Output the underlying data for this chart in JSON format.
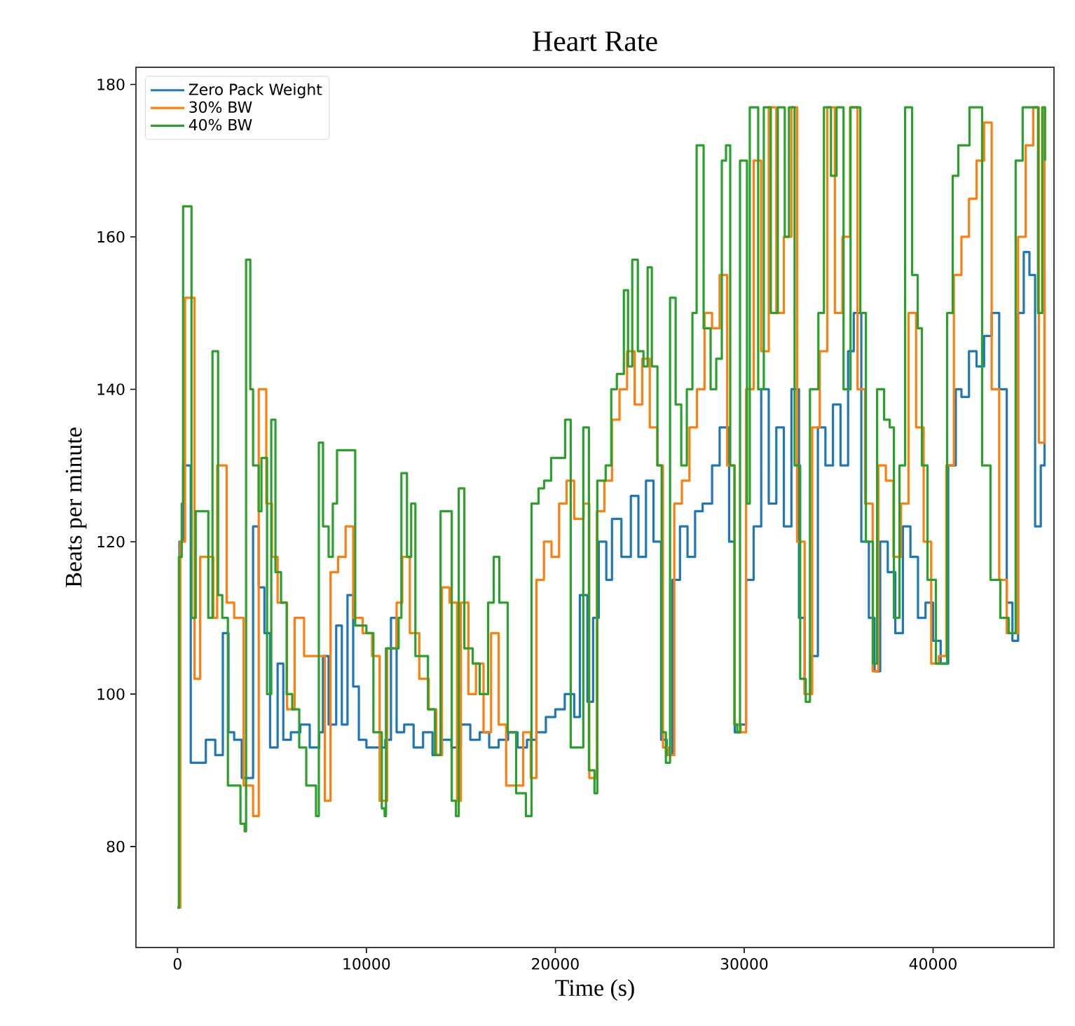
{
  "chart_data": {
    "type": "step",
    "title": "Heart Rate",
    "xlabel": "Time (s)",
    "ylabel": "Beats per minute",
    "xlim": [
      -2200,
      46400
    ],
    "ylim": [
      66.75,
      182.25
    ],
    "xticks": [
      0,
      10000,
      20000,
      30000,
      40000
    ],
    "yticks": [
      80,
      100,
      120,
      140,
      160,
      180
    ],
    "legend": "top left",
    "series": [
      {
        "name": "Zero Pack Weight",
        "color": "#1f77b4",
        "x": [
          0,
          100,
          300,
          700,
          1500,
          2000,
          2400,
          2700,
          3000,
          3400,
          3800,
          4000,
          4300,
          4600,
          4900,
          5300,
          5600,
          6000,
          6500,
          7000,
          7500,
          7700,
          8000,
          8400,
          8700,
          9000,
          9300,
          9600,
          10000,
          10500,
          11000,
          11300,
          11600,
          12000,
          12500,
          13000,
          13500,
          14000,
          14500,
          15000,
          15500,
          16000,
          16500,
          17000,
          17500,
          18000,
          18500,
          19000,
          19500,
          20000,
          20500,
          21000,
          21300,
          21700,
          22000,
          22300,
          22700,
          23000,
          23500,
          24000,
          24400,
          24800,
          25200,
          25600,
          25900,
          26200,
          26600,
          27000,
          27400,
          27800,
          28300,
          28700,
          29200,
          29500,
          29800,
          30100,
          30500,
          30900,
          31300,
          31700,
          32100,
          32500,
          32900,
          33200,
          33500,
          33900,
          34300,
          34700,
          35100,
          35500,
          35800,
          36200,
          36600,
          36900,
          37200,
          37600,
          38000,
          38400,
          38800,
          39200,
          39600,
          40000,
          40400,
          40800,
          41200,
          41500,
          41900,
          42300,
          42700,
          43100,
          43500,
          43900,
          44200,
          44500,
          44800,
          45100,
          45400,
          45700,
          45900
        ],
        "values": [
          72,
          120,
          130,
          91,
          94,
          92,
          108,
          95,
          94,
          89,
          89,
          122,
          114,
          108,
          93,
          104,
          94,
          95,
          96,
          93,
          95,
          105,
          96,
          109,
          96,
          113,
          101,
          94,
          93,
          93,
          94,
          110,
          95,
          96,
          93,
          95,
          92,
          94,
          93,
          96,
          94,
          95,
          93,
          94,
          95,
          93,
          94,
          95,
          97,
          98,
          100,
          97,
          113,
          99,
          110,
          120,
          115,
          123,
          118,
          126,
          118,
          128,
          120,
          94,
          92,
          115,
          122,
          118,
          124,
          125,
          130,
          135,
          120,
          95,
          96,
          115,
          122,
          140,
          125,
          135,
          122,
          140,
          110,
          100,
          105,
          135,
          130,
          138,
          130,
          145,
          150,
          120,
          110,
          103,
          120,
          116,
          108,
          122,
          118,
          110,
          112,
          107,
          104,
          130,
          140,
          139,
          145,
          143,
          147,
          150,
          140,
          112,
          107,
          150,
          158,
          155,
          122,
          130,
          155
        ]
      },
      {
        "name": "30% BW",
        "color": "#ff7f0e",
        "x": [
          0,
          150,
          400,
          900,
          1200,
          1900,
          2100,
          2600,
          3000,
          3500,
          4000,
          4300,
          4700,
          5000,
          5300,
          5800,
          6200,
          6700,
          7200,
          7800,
          8100,
          8500,
          8900,
          9300,
          9800,
          10300,
          10700,
          11100,
          11600,
          11900,
          12300,
          12800,
          13300,
          13700,
          14000,
          14400,
          14800,
          15000,
          15400,
          15800,
          16200,
          16600,
          17000,
          17400,
          17800,
          18300,
          18700,
          19000,
          19400,
          19800,
          20200,
          20600,
          21000,
          21500,
          21800,
          22200,
          22600,
          23000,
          23400,
          23800,
          24200,
          24600,
          25000,
          25400,
          25700,
          26000,
          26300,
          26700,
          27100,
          27500,
          27900,
          28300,
          28700,
          29100,
          29500,
          29800,
          30100,
          30500,
          30900,
          31300,
          31700,
          32100,
          32500,
          32800,
          33200,
          33600,
          34000,
          34400,
          34800,
          35200,
          35600,
          36000,
          36400,
          36800,
          37100,
          37500,
          37900,
          38300,
          38700,
          39100,
          39500,
          39900,
          40300,
          40700,
          41100,
          41500,
          41900,
          42300,
          42700,
          43100,
          43500,
          43900,
          44200,
          44500,
          44900,
          45300,
          45600,
          45900
        ],
        "values": [
          72,
          120,
          152,
          102,
          118,
          110,
          130,
          112,
          110,
          88,
          84,
          140,
          125,
          118,
          112,
          98,
          110,
          105,
          105,
          86,
          116,
          118,
          122,
          110,
          108,
          105,
          86,
          106,
          112,
          118,
          108,
          102,
          98,
          92,
          114,
          112,
          86,
          112,
          100,
          104,
          95,
          108,
          96,
          88,
          88,
          95,
          89,
          115,
          120,
          118,
          125,
          128,
          123,
          125,
          89,
          124,
          128,
          136,
          140,
          145,
          138,
          144,
          135,
          130,
          93,
          92,
          125,
          128,
          135,
          140,
          150,
          148,
          155,
          130,
          96,
          95,
          140,
          170,
          145,
          177,
          150,
          160,
          177,
          120,
          100,
          135,
          145,
          177,
          150,
          160,
          177,
          140,
          125,
          103,
          130,
          128,
          118,
          125,
          150,
          135,
          120,
          104,
          105,
          130,
          155,
          160,
          165,
          170,
          175,
          140,
          115,
          108,
          108,
          160,
          172,
          177,
          133,
          177
        ]
      },
      {
        "name": "40% BW",
        "color": "#2ca02c",
        "x": [
          0,
          74,
          222,
          296,
          741,
          963,
          1630,
          1852,
          2148,
          2370,
          2667,
          3333,
          3556,
          3630,
          3852,
          4000,
          4296,
          4444,
          4741,
          4963,
          5185,
          5481,
          5778,
          6074,
          6444,
          6815,
          7333,
          7481,
          7704,
          8000,
          8222,
          8444,
          9185,
          9407,
          10000,
          10370,
          10815,
          10963,
          11037,
          11704,
          11852,
          12148,
          12370,
          12593,
          12889,
          13259,
          13630,
          13926,
          14370,
          14519,
          14741,
          14889,
          15185,
          15630,
          16000,
          16444,
          16741,
          17037,
          17481,
          17926,
          18444,
          18741,
          19111,
          19407,
          19778,
          20148,
          20519,
          20815,
          21481,
          21778,
          22074,
          22222,
          22667,
          22963,
          23259,
          23630,
          23852,
          24074,
          24370,
          24667,
          24889,
          25111,
          25407,
          25630,
          25852,
          26074,
          26370,
          26667,
          26963,
          27259,
          27481,
          27852,
          28222,
          28519,
          28815,
          29037,
          29259,
          29481,
          29630,
          29778,
          30148,
          30296,
          30741,
          31037,
          31407,
          31778,
          32148,
          32370,
          32667,
          32963,
          33259,
          33481,
          33926,
          34222,
          34593,
          34889,
          35259,
          35630,
          36148,
          36444,
          36815,
          37037,
          37407,
          37704,
          37926,
          38222,
          38519,
          38889,
          39185,
          39407,
          39704,
          40148,
          40519,
          40741,
          41037,
          41333,
          41704,
          41926,
          42370,
          42593,
          43037,
          43556,
          44000,
          44222,
          44370,
          44741,
          45333,
          45556,
          45778,
          45926
        ],
        "values": [
          72,
          118,
          125,
          164,
          110,
          124,
          110,
          145,
          113,
          110,
          88,
          83,
          82,
          157,
          140,
          130,
          124,
          131,
          100,
          136,
          116,
          112,
          100,
          98,
          93,
          88,
          84,
          133,
          122,
          118,
          125,
          132,
          132,
          109,
          108,
          95,
          85,
          84,
          106,
          110,
          129,
          118,
          125,
          105,
          105,
          98,
          92,
          124,
          124,
          86,
          84,
          127,
          106,
          104,
          100,
          112,
          118,
          112,
          95,
          87,
          84,
          125,
          127,
          128,
          131,
          131,
          136,
          93,
          135,
          90,
          87,
          128,
          130,
          140,
          142,
          153,
          143,
          157,
          145,
          143,
          156,
          143,
          130,
          95,
          91,
          152,
          138,
          130,
          140,
          150,
          172,
          148,
          140,
          144,
          170,
          172,
          130,
          96,
          95,
          170,
          125,
          177,
          140,
          177,
          150,
          177,
          160,
          177,
          130,
          102,
          99,
          140,
          150,
          177,
          168,
          177,
          140,
          177,
          150,
          120,
          104,
          140,
          136,
          135,
          110,
          130,
          177,
          155,
          148,
          130,
          115,
          104,
          104,
          150,
          168,
          172,
          172,
          177,
          177,
          130,
          115,
          110,
          108,
          108,
          170,
          177,
          177,
          150,
          177,
          170
        ]
      }
    ]
  }
}
